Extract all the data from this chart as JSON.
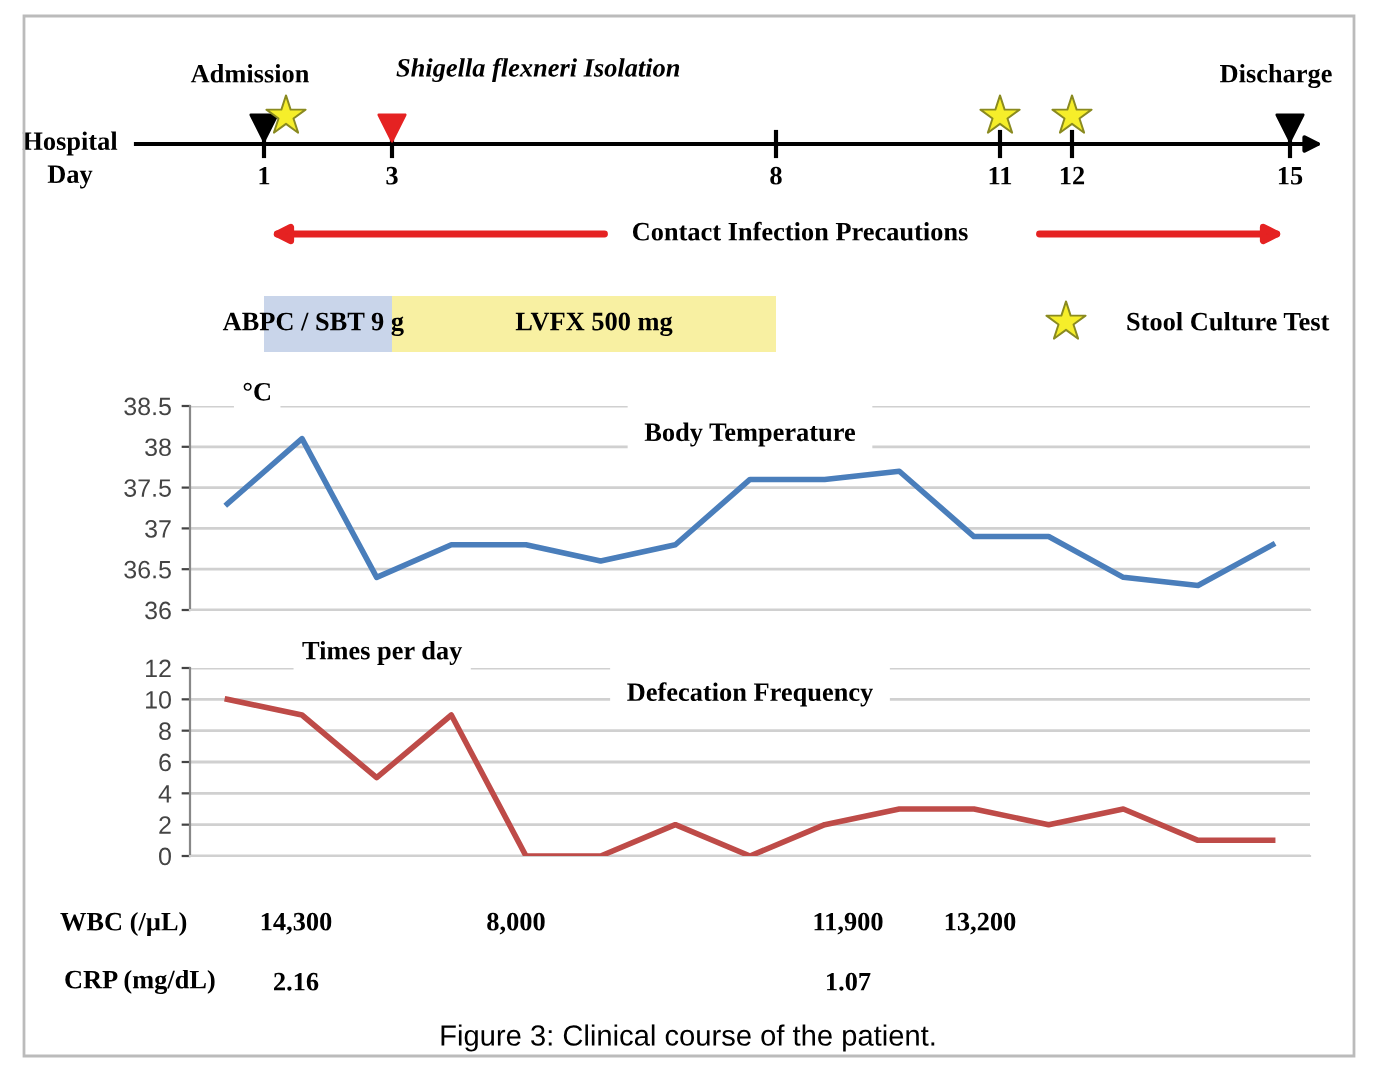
{
  "chart_data": [
    {
      "type": "other",
      "annotations": [
        "Admission",
        "Shigella flexneri Isolation",
        "Discharge",
        "Hospital\nDay",
        "1",
        "3",
        "8",
        "11",
        "12",
        "15",
        "Contact Infection Precautions",
        "ABPC / SBT 9 g",
        "LVFX 500 mg",
        "Stool Culture Test"
      ]
    },
    {
      "type": "line",
      "title": "Body Temperature",
      "ylabel": "°C",
      "categories": [
        null,
        null,
        null,
        null,
        null,
        null,
        null,
        null,
        null,
        null,
        null,
        null,
        null,
        null,
        null
      ],
      "series": [
        {
          "color": "#4a7ebb",
          "values": [
            37.3,
            38.1,
            36.4,
            36.8,
            36.8,
            36.6,
            36.8,
            37.6,
            37.6,
            37.7,
            36.9,
            36.9,
            36.4,
            36.3,
            36.8
          ]
        }
      ],
      "ylim": [
        36,
        38.5
      ],
      "yticks": [
        36,
        36.5,
        37,
        37.5,
        38,
        38.5
      ],
      "grid": "y",
      "tick_labels": "y",
      "marker": "none"
    },
    {
      "type": "line",
      "title": "Defecation Frequency",
      "ylabel": "Times per day",
      "categories": [
        null,
        null,
        null,
        null,
        null,
        null,
        null,
        null,
        null,
        null,
        null,
        null,
        null,
        null,
        null
      ],
      "series": [
        {
          "color": "#be4b48",
          "values": [
            10,
            9,
            5,
            9,
            0,
            0,
            2,
            0,
            2,
            3,
            3,
            2,
            3,
            1,
            1
          ]
        }
      ],
      "ylim": [
        0,
        12
      ],
      "yticks": [
        0,
        2,
        4,
        6,
        8,
        10,
        12
      ],
      "grid": "y",
      "tick_labels": "y",
      "marker": "none",
      "annotations": [
        "WBC (/µL)",
        "14,300",
        "8,000",
        "11,900",
        "13,200",
        "CRP (mg/dL)",
        "2.16",
        "1.07",
        "Figure 3: Clinical course of the patient."
      ]
    }
  ]
}
